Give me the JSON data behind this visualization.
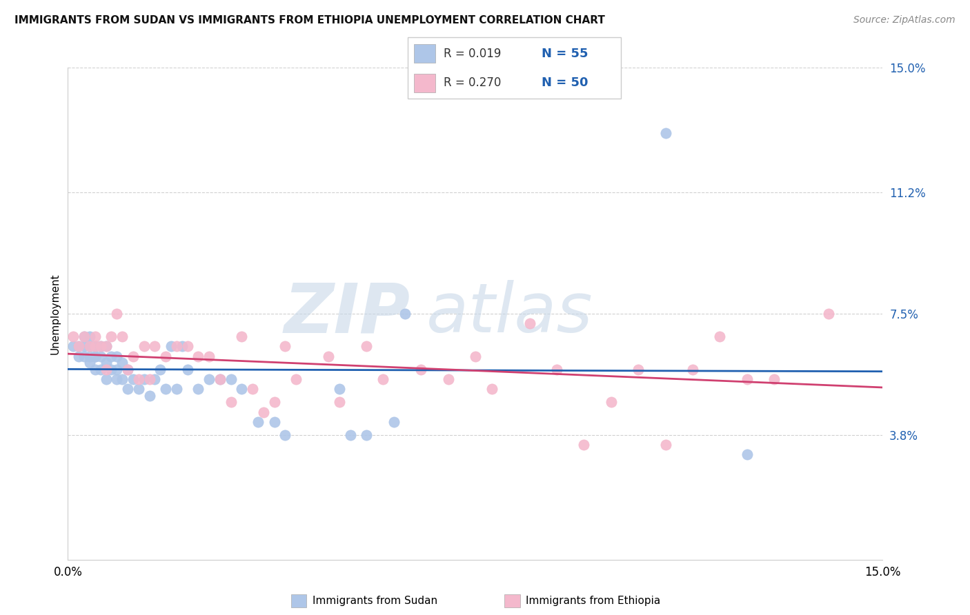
{
  "title": "IMMIGRANTS FROM SUDAN VS IMMIGRANTS FROM ETHIOPIA UNEMPLOYMENT CORRELATION CHART",
  "source": "Source: ZipAtlas.com",
  "ylabel": "Unemployment",
  "xlim": [
    0.0,
    0.15
  ],
  "ylim": [
    0.0,
    0.15
  ],
  "xtick_positions": [
    0.0,
    0.15
  ],
  "xtick_labels": [
    "0.0%",
    "15.0%"
  ],
  "ytick_vals_right": [
    0.038,
    0.075,
    0.112,
    0.15
  ],
  "ytick_labels_right": [
    "3.8%",
    "7.5%",
    "11.2%",
    "15.0%"
  ],
  "legend_r1": "R = 0.019",
  "legend_n1": "N = 55",
  "legend_r2": "R = 0.270",
  "legend_n2": "N = 50",
  "sudan_color": "#aec6e8",
  "ethiopia_color": "#f4b8cc",
  "sudan_line_color": "#2060b0",
  "ethiopia_line_color": "#d04070",
  "watermark_zip": "ZIP",
  "watermark_atlas": "atlas",
  "sudan_points_x": [
    0.001,
    0.002,
    0.002,
    0.003,
    0.003,
    0.003,
    0.004,
    0.004,
    0.004,
    0.004,
    0.005,
    0.005,
    0.005,
    0.005,
    0.006,
    0.006,
    0.006,
    0.007,
    0.007,
    0.007,
    0.008,
    0.008,
    0.009,
    0.009,
    0.009,
    0.01,
    0.01,
    0.011,
    0.011,
    0.012,
    0.013,
    0.014,
    0.015,
    0.016,
    0.017,
    0.018,
    0.019,
    0.02,
    0.021,
    0.022,
    0.024,
    0.026,
    0.028,
    0.03,
    0.032,
    0.035,
    0.038,
    0.04,
    0.05,
    0.052,
    0.055,
    0.06,
    0.062,
    0.11,
    0.125
  ],
  "sudan_points_y": [
    0.065,
    0.062,
    0.065,
    0.062,
    0.065,
    0.068,
    0.06,
    0.062,
    0.065,
    0.068,
    0.058,
    0.062,
    0.065,
    0.062,
    0.058,
    0.062,
    0.065,
    0.055,
    0.06,
    0.065,
    0.058,
    0.062,
    0.055,
    0.058,
    0.062,
    0.055,
    0.06,
    0.052,
    0.058,
    0.055,
    0.052,
    0.055,
    0.05,
    0.055,
    0.058,
    0.052,
    0.065,
    0.052,
    0.065,
    0.058,
    0.052,
    0.055,
    0.055,
    0.055,
    0.052,
    0.042,
    0.042,
    0.038,
    0.052,
    0.038,
    0.038,
    0.042,
    0.075,
    0.13,
    0.032
  ],
  "ethiopia_points_x": [
    0.001,
    0.002,
    0.003,
    0.004,
    0.005,
    0.005,
    0.006,
    0.007,
    0.007,
    0.008,
    0.009,
    0.01,
    0.011,
    0.012,
    0.013,
    0.014,
    0.015,
    0.016,
    0.018,
    0.02,
    0.022,
    0.024,
    0.026,
    0.028,
    0.03,
    0.032,
    0.034,
    0.036,
    0.038,
    0.04,
    0.042,
    0.048,
    0.05,
    0.055,
    0.058,
    0.065,
    0.07,
    0.075,
    0.078,
    0.085,
    0.09,
    0.095,
    0.1,
    0.105,
    0.11,
    0.115,
    0.12,
    0.125,
    0.13,
    0.14
  ],
  "ethiopia_points_y": [
    0.068,
    0.065,
    0.068,
    0.065,
    0.065,
    0.068,
    0.065,
    0.065,
    0.058,
    0.068,
    0.075,
    0.068,
    0.058,
    0.062,
    0.055,
    0.065,
    0.055,
    0.065,
    0.062,
    0.065,
    0.065,
    0.062,
    0.062,
    0.055,
    0.048,
    0.068,
    0.052,
    0.045,
    0.048,
    0.065,
    0.055,
    0.062,
    0.048,
    0.065,
    0.055,
    0.058,
    0.055,
    0.062,
    0.052,
    0.072,
    0.058,
    0.035,
    0.048,
    0.058,
    0.035,
    0.058,
    0.068,
    0.055,
    0.055,
    0.075
  ]
}
